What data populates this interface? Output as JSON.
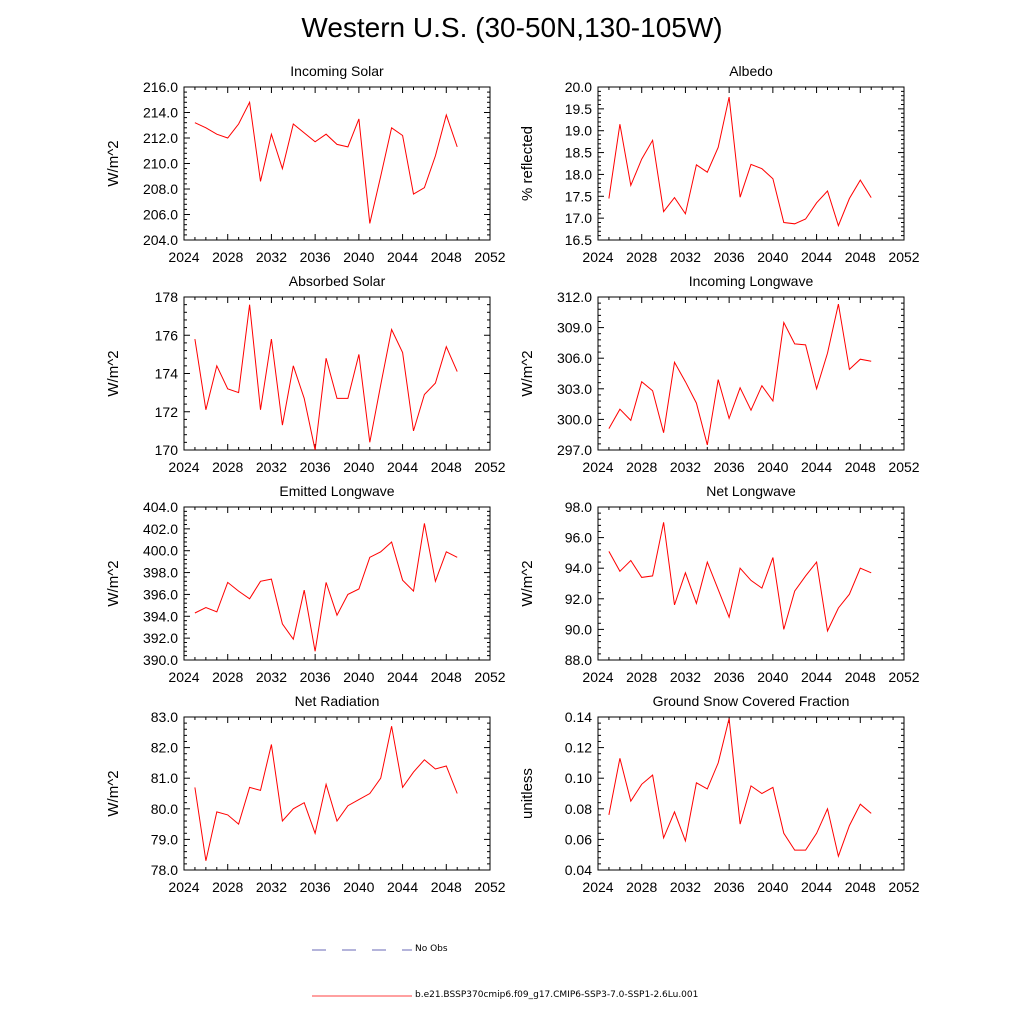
{
  "title": "Western U.S. (30-50N,130-105W)",
  "legend": {
    "obs_label": "No Obs",
    "model_label": "b.e21.BSSP370cmip6.f09_g17.CMIP6-SSP3-7.0-SSP1-2.6Lu.001",
    "model_color": "#ff0000",
    "obs_color": "#3a3aa0"
  },
  "chart_data": [
    {
      "type": "line",
      "title": "Incoming Solar",
      "ylabel": "W/m^2",
      "xlim": [
        2024,
        2052
      ],
      "ylim": [
        204,
        216
      ],
      "xticks": [
        "2024",
        "2028",
        "2032",
        "2036",
        "2040",
        "2044",
        "2048",
        "2052"
      ],
      "yticks": [
        "204.0",
        "206.0",
        "208.0",
        "210.0",
        "212.0",
        "214.0",
        "216.0"
      ],
      "x": [
        2025,
        2026,
        2027,
        2028,
        2029,
        2030,
        2031,
        2032,
        2033,
        2034,
        2035,
        2036,
        2037,
        2038,
        2039,
        2040,
        2041,
        2042,
        2043,
        2044,
        2045,
        2046,
        2047,
        2048,
        2049
      ],
      "values": [
        213.2,
        212.8,
        212.3,
        212.0,
        213.1,
        214.8,
        208.6,
        212.3,
        209.6,
        213.1,
        212.4,
        211.7,
        212.3,
        211.5,
        211.3,
        213.5,
        205.3,
        209.0,
        212.8,
        212.2,
        207.6,
        208.1,
        210.6,
        213.8,
        211.3
      ]
    },
    {
      "type": "line",
      "title": "Albedo",
      "ylabel": "% reflected",
      "xlim": [
        2024,
        2052
      ],
      "ylim": [
        16.5,
        20.0
      ],
      "xticks": [
        "2024",
        "2028",
        "2032",
        "2036",
        "2040",
        "2044",
        "2048",
        "2052"
      ],
      "yticks": [
        "16.5",
        "17.0",
        "17.5",
        "18.0",
        "18.5",
        "19.0",
        "19.5",
        "20.0"
      ],
      "x": [
        2025,
        2026,
        2027,
        2028,
        2029,
        2030,
        2031,
        2032,
        2033,
        2034,
        2035,
        2036,
        2037,
        2038,
        2039,
        2040,
        2041,
        2042,
        2043,
        2044,
        2045,
        2046,
        2047,
        2048,
        2049
      ],
      "values": [
        17.45,
        19.15,
        17.75,
        18.35,
        18.78,
        17.15,
        17.47,
        17.1,
        18.22,
        18.05,
        18.62,
        19.77,
        17.48,
        18.23,
        18.13,
        17.9,
        16.9,
        16.87,
        16.98,
        17.35,
        17.62,
        16.83,
        17.45,
        17.87,
        17.47
      ]
    },
    {
      "type": "line",
      "title": "Absorbed Solar",
      "ylabel": "W/m^2",
      "xlim": [
        2024,
        2052
      ],
      "ylim": [
        170,
        178
      ],
      "xticks": [
        "2024",
        "2028",
        "2032",
        "2036",
        "2040",
        "2044",
        "2048",
        "2052"
      ],
      "yticks": [
        "170",
        "172",
        "174",
        "176",
        "178"
      ],
      "x": [
        2025,
        2026,
        2027,
        2028,
        2029,
        2030,
        2031,
        2032,
        2033,
        2034,
        2035,
        2036,
        2037,
        2038,
        2039,
        2040,
        2041,
        2042,
        2043,
        2044,
        2045,
        2046,
        2047,
        2048,
        2049
      ],
      "values": [
        175.8,
        172.1,
        174.4,
        173.2,
        173.0,
        177.6,
        172.1,
        175.8,
        171.3,
        174.4,
        172.7,
        170.0,
        174.8,
        172.7,
        172.7,
        175.0,
        170.4,
        173.4,
        176.3,
        175.1,
        171.0,
        172.9,
        173.5,
        175.4,
        174.1
      ]
    },
    {
      "type": "line",
      "title": "Incoming Longwave",
      "ylabel": "W/m^2",
      "xlim": [
        2024,
        2052
      ],
      "ylim": [
        297,
        312
      ],
      "xticks": [
        "2024",
        "2028",
        "2032",
        "2036",
        "2040",
        "2044",
        "2048",
        "2052"
      ],
      "yticks": [
        "297.0",
        "300.0",
        "303.0",
        "306.0",
        "309.0",
        "312.0"
      ],
      "x": [
        2025,
        2026,
        2027,
        2028,
        2029,
        2030,
        2031,
        2032,
        2033,
        2034,
        2035,
        2036,
        2037,
        2038,
        2039,
        2040,
        2041,
        2042,
        2043,
        2044,
        2045,
        2046,
        2047,
        2048,
        2049
      ],
      "values": [
        299.1,
        301.0,
        299.9,
        303.7,
        302.8,
        298.7,
        305.6,
        303.7,
        301.6,
        297.5,
        303.9,
        300.1,
        303.1,
        300.9,
        303.3,
        301.8,
        309.5,
        307.4,
        307.3,
        303.0,
        306.5,
        311.3,
        304.9,
        305.9,
        305.7
      ]
    },
    {
      "type": "line",
      "title": "Emitted Longwave",
      "ylabel": "W/m^2",
      "xlim": [
        2024,
        2052
      ],
      "ylim": [
        390,
        404
      ],
      "xticks": [
        "2024",
        "2028",
        "2032",
        "2036",
        "2040",
        "2044",
        "2048",
        "2052"
      ],
      "yticks": [
        "390.0",
        "392.0",
        "394.0",
        "396.0",
        "398.0",
        "400.0",
        "402.0",
        "404.0"
      ],
      "x": [
        2025,
        2026,
        2027,
        2028,
        2029,
        2030,
        2031,
        2032,
        2033,
        2034,
        2035,
        2036,
        2037,
        2038,
        2039,
        2040,
        2041,
        2042,
        2043,
        2044,
        2045,
        2046,
        2047,
        2048,
        2049
      ],
      "values": [
        394.3,
        394.8,
        394.4,
        397.1,
        396.3,
        395.6,
        397.2,
        397.4,
        393.3,
        391.9,
        396.4,
        390.8,
        397.1,
        394.1,
        396.0,
        396.5,
        399.4,
        399.9,
        400.8,
        397.3,
        396.3,
        402.5,
        397.2,
        399.9,
        399.4
      ]
    },
    {
      "type": "line",
      "title": "Net Longwave",
      "ylabel": "W/m^2",
      "xlim": [
        2024,
        2052
      ],
      "ylim": [
        88,
        98
      ],
      "xticks": [
        "2024",
        "2028",
        "2032",
        "2036",
        "2040",
        "2044",
        "2048",
        "2052"
      ],
      "yticks": [
        "88.0",
        "90.0",
        "92.0",
        "94.0",
        "96.0",
        "98.0"
      ],
      "x": [
        2025,
        2026,
        2027,
        2028,
        2029,
        2030,
        2031,
        2032,
        2033,
        2034,
        2035,
        2036,
        2037,
        2038,
        2039,
        2040,
        2041,
        2042,
        2043,
        2044,
        2045,
        2046,
        2047,
        2048,
        2049
      ],
      "values": [
        95.1,
        93.8,
        94.5,
        93.4,
        93.5,
        97.0,
        91.6,
        93.7,
        91.7,
        94.4,
        92.6,
        90.8,
        94.0,
        93.2,
        92.7,
        94.7,
        90.0,
        92.5,
        93.5,
        94.4,
        89.9,
        91.4,
        92.3,
        94.0,
        93.7
      ]
    },
    {
      "type": "line",
      "title": "Net Radiation",
      "ylabel": "W/m^2",
      "xlim": [
        2024,
        2052
      ],
      "ylim": [
        78,
        83
      ],
      "xticks": [
        "2024",
        "2028",
        "2032",
        "2036",
        "2040",
        "2044",
        "2048",
        "2052"
      ],
      "yticks": [
        "78.0",
        "79.0",
        "80.0",
        "81.0",
        "82.0",
        "83.0"
      ],
      "x": [
        2025,
        2026,
        2027,
        2028,
        2029,
        2030,
        2031,
        2032,
        2033,
        2034,
        2035,
        2036,
        2037,
        2038,
        2039,
        2040,
        2041,
        2042,
        2043,
        2044,
        2045,
        2046,
        2047,
        2048,
        2049
      ],
      "values": [
        80.7,
        78.3,
        79.9,
        79.8,
        79.5,
        80.7,
        80.6,
        82.1,
        79.6,
        80.0,
        80.2,
        79.2,
        80.8,
        79.6,
        80.1,
        80.3,
        80.5,
        81.0,
        82.7,
        80.7,
        81.2,
        81.6,
        81.3,
        81.4,
        80.5
      ]
    },
    {
      "type": "line",
      "title": "Ground Snow Covered Fraction",
      "ylabel": "unitless",
      "xlim": [
        2024,
        2052
      ],
      "ylim": [
        0.04,
        0.14
      ],
      "xticks": [
        "2024",
        "2028",
        "2032",
        "2036",
        "2040",
        "2044",
        "2048",
        "2052"
      ],
      "yticks": [
        "0.04",
        "0.06",
        "0.08",
        "0.10",
        "0.12",
        "0.14"
      ],
      "x": [
        2025,
        2026,
        2027,
        2028,
        2029,
        2030,
        2031,
        2032,
        2033,
        2034,
        2035,
        2036,
        2037,
        2038,
        2039,
        2040,
        2041,
        2042,
        2043,
        2044,
        2045,
        2046,
        2047,
        2048,
        2049
      ],
      "values": [
        0.076,
        0.113,
        0.085,
        0.096,
        0.102,
        0.061,
        0.078,
        0.059,
        0.097,
        0.093,
        0.11,
        0.139,
        0.07,
        0.095,
        0.09,
        0.094,
        0.064,
        0.053,
        0.053,
        0.064,
        0.08,
        0.049,
        0.069,
        0.083,
        0.077
      ]
    }
  ]
}
